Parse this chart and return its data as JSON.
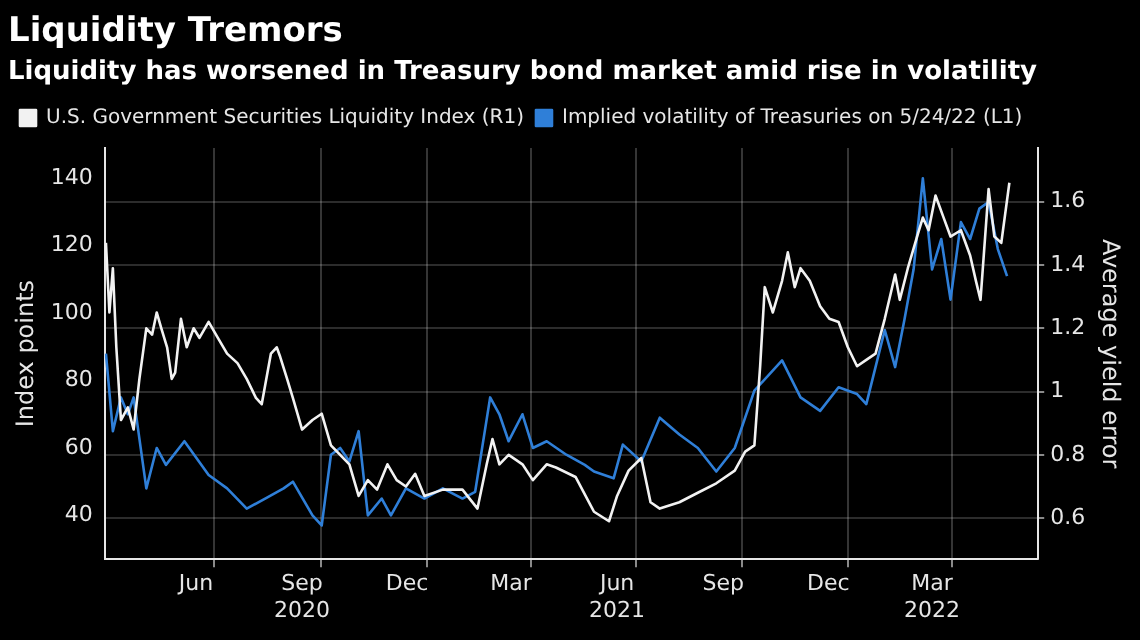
{
  "chart_data": {
    "type": "line",
    "title": "Liquidity Tremors",
    "subtitle": "Liquidity has worsened in Treasury bond market amid rise in volatility",
    "ylabel": "Index points",
    "y2label": "Average yield error",
    "ylim": [
      27,
      149
    ],
    "yticks": [
      40,
      60,
      80,
      100,
      120,
      140
    ],
    "y2lim": [
      0.47,
      1.77
    ],
    "y2ticks": [
      0.6,
      0.8,
      1.0,
      1.2,
      1.4,
      1.6
    ],
    "xlim": [
      "2020-03-28",
      "2022-06-15"
    ],
    "xticks": [
      {
        "value": "2020-06-15",
        "label": "Jun"
      },
      {
        "value": "2020-07-01",
        "label": null
      },
      {
        "value": "2020-09-15",
        "label": "Sep\n2020"
      },
      {
        "value": "2020-10-01",
        "label": null
      },
      {
        "value": "2020-12-15",
        "label": "Dec"
      },
      {
        "value": "2021-01-01",
        "label": null
      },
      {
        "value": "2021-03-15",
        "label": "Mar"
      },
      {
        "value": "2021-04-01",
        "label": null
      },
      {
        "value": "2021-06-15",
        "label": "Jun\n2021"
      },
      {
        "value": "2021-07-01",
        "label": null
      },
      {
        "value": "2021-09-15",
        "label": "Sep"
      },
      {
        "value": "2021-10-01",
        "label": null
      },
      {
        "value": "2021-12-15",
        "label": "Dec"
      },
      {
        "value": "2022-01-01",
        "label": null
      },
      {
        "value": "2022-03-15",
        "label": "Mar\n2022"
      },
      {
        "value": "2022-04-01",
        "label": null
      }
    ],
    "grid": true,
    "legend": "top left",
    "marker": "none",
    "line_style": "solid",
    "series": [
      {
        "name": "U.S. Government Securities Liquidity Index (R1)",
        "color": "#f2f2f2",
        "axis": "y2",
        "x": [
          "2020-03-29",
          "2020-04-01",
          "2020-04-04",
          "2020-04-07",
          "2020-04-11",
          "2020-04-17",
          "2020-04-22",
          "2020-04-27",
          "2020-05-03",
          "2020-05-08",
          "2020-05-12",
          "2020-05-16",
          "2020-05-21",
          "2020-05-25",
          "2020-05-28",
          "2020-06-02",
          "2020-06-07",
          "2020-06-13",
          "2020-06-18",
          "2020-06-26",
          "2020-07-04",
          "2020-07-12",
          "2020-07-21",
          "2020-07-29",
          "2020-08-06",
          "2020-08-11",
          "2020-08-19",
          "2020-08-24",
          "2020-08-27",
          "2020-09-02",
          "2020-09-07",
          "2020-09-15",
          "2020-09-24",
          "2020-10-02",
          "2020-10-10",
          "2020-10-18",
          "2020-10-26",
          "2020-11-03",
          "2020-11-11",
          "2020-11-19",
          "2020-11-28",
          "2020-12-06",
          "2020-12-14",
          "2020-12-22",
          "2020-12-30",
          "2021-01-15",
          "2021-02-01",
          "2021-02-14",
          "2021-02-22",
          "2021-02-27",
          "2021-03-05",
          "2021-03-13",
          "2021-03-25",
          "2021-04-03",
          "2021-04-15",
          "2021-04-23",
          "2021-05-10",
          "2021-05-26",
          "2021-06-08",
          "2021-06-15",
          "2021-06-25",
          "2021-07-06",
          "2021-07-14",
          "2021-07-22",
          "2021-08-08",
          "2021-08-24",
          "2021-09-09",
          "2021-09-25",
          "2021-10-04",
          "2021-10-12",
          "2021-10-17",
          "2021-10-21",
          "2021-10-28",
          "2021-11-05",
          "2021-11-10",
          "2021-11-16",
          "2021-11-21",
          "2021-11-29",
          "2021-12-08",
          "2021-12-16",
          "2021-12-24",
          "2022-01-01",
          "2022-01-09",
          "2022-01-17",
          "2022-01-25",
          "2022-02-02",
          "2022-02-11",
          "2022-02-15",
          "2022-02-22",
          "2022-03-02",
          "2022-03-07",
          "2022-03-12",
          "2022-03-18",
          "2022-03-25",
          "2022-03-31",
          "2022-04-09",
          "2022-04-17",
          "2022-04-22",
          "2022-04-26",
          "2022-05-03",
          "2022-05-08",
          "2022-05-14",
          "2022-05-21"
        ],
        "values": [
          1.47,
          1.25,
          1.39,
          1.14,
          0.91,
          0.95,
          0.88,
          1.04,
          1.2,
          1.18,
          1.25,
          1.2,
          1.14,
          1.04,
          1.06,
          1.23,
          1.14,
          1.2,
          1.17,
          1.22,
          1.17,
          1.12,
          1.09,
          1.04,
          0.98,
          0.96,
          1.12,
          1.14,
          1.11,
          1.04,
          0.98,
          0.88,
          0.91,
          0.93,
          0.83,
          0.8,
          0.77,
          0.67,
          0.72,
          0.69,
          0.77,
          0.72,
          0.7,
          0.74,
          0.67,
          0.69,
          0.69,
          0.63,
          0.77,
          0.85,
          0.77,
          0.8,
          0.77,
          0.72,
          0.77,
          0.76,
          0.73,
          0.62,
          0.59,
          0.67,
          0.75,
          0.79,
          0.65,
          0.63,
          0.65,
          0.68,
          0.71,
          0.75,
          0.81,
          0.83,
          1.08,
          1.33,
          1.25,
          1.35,
          1.44,
          1.33,
          1.39,
          1.35,
          1.27,
          1.23,
          1.22,
          1.14,
          1.08,
          1.1,
          1.12,
          1.23,
          1.37,
          1.29,
          1.39,
          1.49,
          1.55,
          1.51,
          1.62,
          1.55,
          1.49,
          1.51,
          1.43,
          1.35,
          1.29,
          1.64,
          1.49,
          1.47,
          1.66
        ]
      },
      {
        "name": "Implied volatility of Treasuries on 5/24/22 (L1)",
        "color": "#2f7fd8",
        "axis": "y",
        "x": [
          "2020-03-29",
          "2020-04-04",
          "2020-04-11",
          "2020-04-17",
          "2020-04-22",
          "2020-05-03",
          "2020-05-12",
          "2020-05-20",
          "2020-06-05",
          "2020-06-26",
          "2020-07-12",
          "2020-07-29",
          "2020-08-14",
          "2020-08-30",
          "2020-09-07",
          "2020-09-24",
          "2020-10-02",
          "2020-10-10",
          "2020-10-18",
          "2020-10-26",
          "2020-11-03",
          "2020-11-11",
          "2020-11-23",
          "2020-12-01",
          "2020-12-14",
          "2020-12-30",
          "2021-01-15",
          "2021-02-01",
          "2021-02-12",
          "2021-02-25",
          "2021-03-05",
          "2021-03-13",
          "2021-03-25",
          "2021-04-03",
          "2021-04-15",
          "2021-05-02",
          "2021-05-18",
          "2021-05-26",
          "2021-06-12",
          "2021-06-20",
          "2021-07-06",
          "2021-07-22",
          "2021-08-08",
          "2021-08-24",
          "2021-09-09",
          "2021-09-25",
          "2021-10-12",
          "2021-11-05",
          "2021-11-21",
          "2021-12-08",
          "2021-12-24",
          "2022-01-09",
          "2022-01-17",
          "2022-01-25",
          "2022-02-02",
          "2022-02-11",
          "2022-02-19",
          "2022-02-27",
          "2022-03-07",
          "2022-03-15",
          "2022-03-23",
          "2022-03-31",
          "2022-04-09",
          "2022-04-17",
          "2022-04-25",
          "2022-05-03",
          "2022-05-11",
          "2022-05-19"
        ],
        "values": [
          88,
          65,
          75,
          70,
          75,
          48,
          60,
          55,
          62,
          52,
          48,
          42,
          45,
          48,
          50,
          40,
          37,
          58,
          60,
          56,
          65,
          40,
          45,
          40,
          48,
          45,
          48,
          45,
          47,
          75,
          70,
          62,
          70,
          60,
          62,
          58,
          55,
          53,
          51,
          61,
          56,
          69,
          64,
          60,
          53,
          60,
          77,
          86,
          75,
          71,
          78,
          76,
          73,
          84,
          95,
          84,
          98,
          113,
          140,
          113,
          122,
          104,
          127,
          122,
          131,
          133,
          119,
          111
        ]
      }
    ]
  }
}
